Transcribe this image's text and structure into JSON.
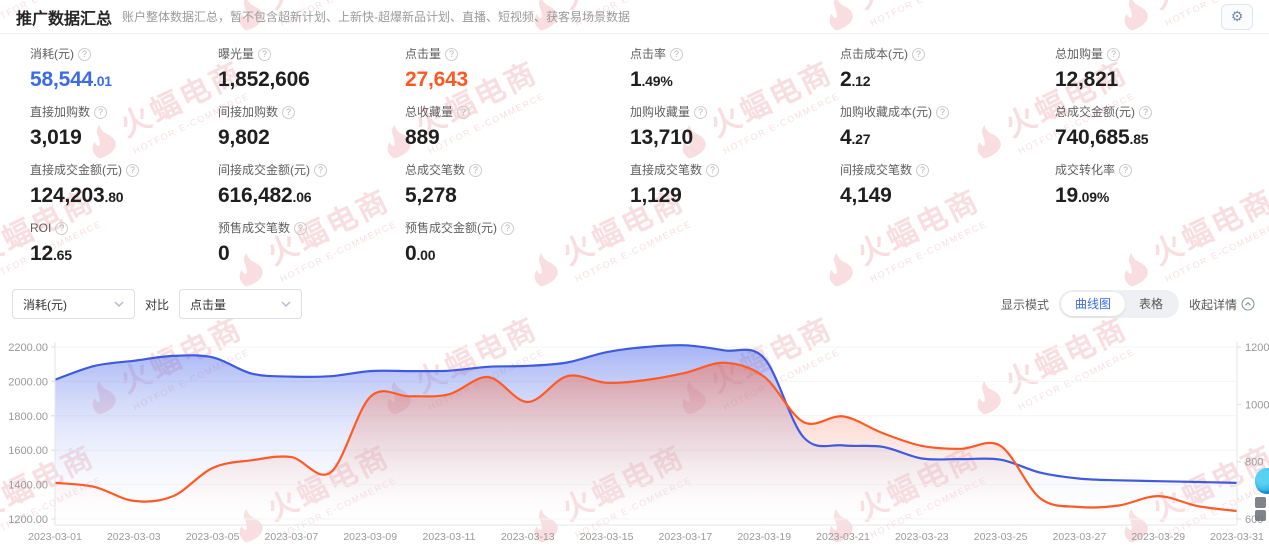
{
  "header": {
    "title": "推广数据汇总",
    "subtitle": "账户整体数据汇总，暂不包含超新计划、上新快-超爆新品计划、直播、短视频、获客易场景数据"
  },
  "colors": {
    "accent_blue": "#3D6BE4",
    "accent_orange": "#FF5722",
    "line_blue": "#3f5ae0",
    "line_orange": "#ff5a26",
    "axis_text": "#999999",
    "watermark_pink": "#db5c68"
  },
  "metrics": [
    {
      "label": "消耗(元)",
      "value_int": "58,544",
      "value_dec": ".01",
      "accent": "blue"
    },
    {
      "label": "曝光量",
      "value_int": "1,852,606",
      "value_dec": "",
      "accent": null
    },
    {
      "label": "点击量",
      "value_int": "27,643",
      "value_dec": "",
      "accent": "orange"
    },
    {
      "label": "点击率",
      "value_int": "1",
      "value_dec": ".49%",
      "accent": null
    },
    {
      "label": "点击成本(元)",
      "value_int": "2",
      "value_dec": ".12",
      "accent": null
    },
    {
      "label": "总加购量",
      "value_int": "12,821",
      "value_dec": "",
      "accent": null
    },
    {
      "label": "直接加购数",
      "value_int": "3,019",
      "value_dec": "",
      "accent": null
    },
    {
      "label": "间接加购数",
      "value_int": "9,802",
      "value_dec": "",
      "accent": null
    },
    {
      "label": "总收藏量",
      "value_int": "889",
      "value_dec": "",
      "accent": null
    },
    {
      "label": "加购收藏量",
      "value_int": "13,710",
      "value_dec": "",
      "accent": null
    },
    {
      "label": "加购收藏成本(元)",
      "value_int": "4",
      "value_dec": ".27",
      "accent": null
    },
    {
      "label": "总成交金额(元)",
      "value_int": "740,685",
      "value_dec": ".85",
      "accent": null
    },
    {
      "label": "直接成交金额(元)",
      "value_int": "124,203",
      "value_dec": ".80",
      "accent": null
    },
    {
      "label": "间接成交金额(元)",
      "value_int": "616,482",
      "value_dec": ".06",
      "accent": null
    },
    {
      "label": "总成交笔数",
      "value_int": "5,278",
      "value_dec": "",
      "accent": null
    },
    {
      "label": "直接成交笔数",
      "value_int": "1,129",
      "value_dec": "",
      "accent": null
    },
    {
      "label": "间接成交笔数",
      "value_int": "4,149",
      "value_dec": "",
      "accent": null
    },
    {
      "label": "成交转化率",
      "value_int": "19",
      "value_dec": ".09%",
      "accent": null
    },
    {
      "label": "ROI",
      "value_int": "12",
      "value_dec": ".65",
      "accent": null
    },
    {
      "label": "预售成交笔数",
      "value_int": "0",
      "value_dec": "",
      "accent": null
    },
    {
      "label": "预售成交金额(元)",
      "value_int": "0",
      "value_dec": ".00",
      "accent": null
    }
  ],
  "controls": {
    "metric_select": "消耗(元)",
    "compare_label": "对比",
    "compare_select": "点击量",
    "display_mode_label": "显示模式",
    "mode_curve": "曲线图",
    "mode_table": "表格",
    "collapse_label": "收起详情"
  },
  "watermark": {
    "cn": "火蝠电商",
    "en": "HOTFOR E-COMMERCE"
  },
  "chart_data": {
    "type": "line",
    "smooth": true,
    "grid": true,
    "legend_position": "none",
    "x": [
      "2023-03-01",
      "2023-03-02",
      "2023-03-03",
      "2023-03-04",
      "2023-03-05",
      "2023-03-06",
      "2023-03-07",
      "2023-03-08",
      "2023-03-09",
      "2023-03-10",
      "2023-03-11",
      "2023-03-12",
      "2023-03-13",
      "2023-03-14",
      "2023-03-15",
      "2023-03-16",
      "2023-03-17",
      "2023-03-18",
      "2023-03-19",
      "2023-03-20",
      "2023-03-21",
      "2023-03-22",
      "2023-03-23",
      "2023-03-24",
      "2023-03-25",
      "2023-03-26",
      "2023-03-27",
      "2023-03-28",
      "2023-03-29",
      "2023-03-30",
      "2023-03-31"
    ],
    "x_label_every": 2,
    "left_axis": {
      "min": 1200,
      "max": 2200,
      "ticks": [
        "2200.00",
        "2000.00",
        "1800.00",
        "1600.00",
        "1400.00",
        "1200.00"
      ]
    },
    "right_axis": {
      "min": 600,
      "max": 1200,
      "ticks": [
        "1200",
        "1000",
        "800",
        "600"
      ]
    },
    "series": [
      {
        "name": "消耗(元)",
        "axis": "left",
        "color": "#3f5ae0",
        "values": [
          2010,
          2090,
          2120,
          2148,
          2140,
          2045,
          2028,
          2030,
          2060,
          2060,
          2062,
          2085,
          2090,
          2110,
          2170,
          2200,
          2210,
          2180,
          2135,
          1675,
          1628,
          1620,
          1552,
          1548,
          1545,
          1470,
          1435,
          1425,
          1420,
          1415,
          1410
        ]
      },
      {
        "name": "点击量",
        "axis": "right",
        "color": "#ff5a26",
        "values": [
          726,
          712,
          663,
          680,
          778,
          805,
          816,
          763,
          1026,
          1028,
          1035,
          1095,
          1008,
          1098,
          1075,
          1085,
          1110,
          1145,
          1096,
          938,
          958,
          900,
          855,
          845,
          855,
          673,
          642,
          647,
          680,
          645,
          628
        ]
      }
    ]
  }
}
